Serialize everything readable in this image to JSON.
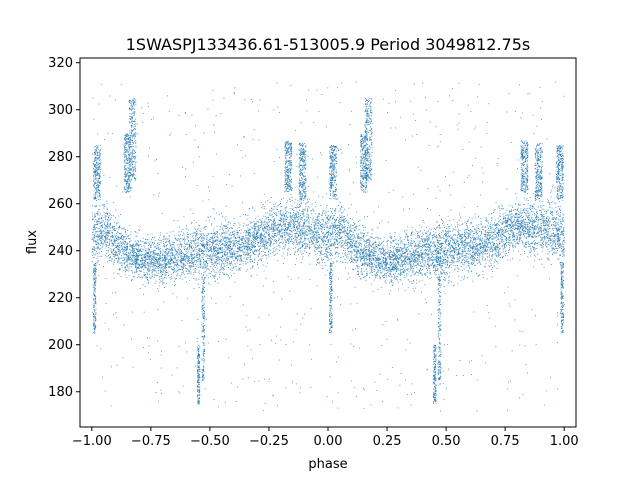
{
  "chart_data": {
    "type": "scatter",
    "title": "1SWASPJ133436.61-513005.9 Period 3049812.75s",
    "xlabel": "phase",
    "ylabel": "flux",
    "xlim": [
      -1.05,
      1.05
    ],
    "ylim": [
      165,
      322
    ],
    "xticks": [
      -1.0,
      -0.75,
      -0.5,
      -0.25,
      0.0,
      0.25,
      0.5,
      0.75,
      1.0
    ],
    "xtick_labels": [
      "−1.00",
      "−0.75",
      "−0.50",
      "−0.25",
      "0.00",
      "0.25",
      "0.50",
      "0.75",
      "1.00"
    ],
    "yticks": [
      180,
      200,
      220,
      240,
      260,
      280,
      300,
      320
    ],
    "ytick_labels": [
      "180",
      "200",
      "220",
      "240",
      "260",
      "280",
      "300",
      "320"
    ],
    "grid": false,
    "point_color": "#1f77b4",
    "series": [
      {
        "phase": [
          -1.0,
          -0.95,
          -0.9,
          -0.85,
          -0.8,
          -0.75,
          -0.7,
          -0.65,
          -0.6,
          -0.55,
          -0.5,
          -0.45,
          -0.4,
          -0.35,
          -0.3,
          -0.25,
          -0.2,
          -0.15,
          -0.1,
          -0.05,
          0.0,
          0.05,
          0.1,
          0.15,
          0.2,
          0.25,
          0.3,
          0.35,
          0.4,
          0.45,
          0.5,
          0.55,
          0.6,
          0.65,
          0.7,
          0.75,
          0.8,
          0.85,
          0.9,
          0.95,
          1.0
        ],
        "flux_median": [
          246,
          249,
          243,
          239,
          237,
          236,
          236,
          238,
          239,
          240,
          240,
          241,
          242,
          243,
          245,
          248,
          250,
          251,
          250,
          248,
          246,
          249,
          243,
          239,
          237,
          236,
          236,
          238,
          239,
          240,
          240,
          241,
          242,
          243,
          245,
          248,
          250,
          251,
          250,
          248,
          246
        ],
        "flux_spread": [
          12,
          10,
          10,
          9,
          9,
          9,
          9,
          10,
          10,
          11,
          11,
          10,
          10,
          10,
          10,
          10,
          10,
          10,
          11,
          12,
          12,
          10,
          10,
          9,
          9,
          9,
          9,
          10,
          10,
          11,
          11,
          10,
          10,
          10,
          10,
          10,
          10,
          10,
          11,
          12,
          12
        ],
        "flux_min": 172,
        "flux_max": 312
      }
    ],
    "high_clumps": [
      {
        "phase": -0.98,
        "flux": [
          262,
          285
        ]
      },
      {
        "phase": -0.85,
        "flux": [
          265,
          290
        ]
      },
      {
        "phase": -0.83,
        "flux": [
          270,
          305
        ]
      },
      {
        "phase": -0.17,
        "flux": [
          265,
          287
        ]
      },
      {
        "phase": -0.11,
        "flux": [
          262,
          286
        ]
      },
      {
        "phase": 0.02,
        "flux": [
          262,
          285
        ]
      },
      {
        "phase": 0.15,
        "flux": [
          265,
          290
        ]
      },
      {
        "phase": 0.17,
        "flux": [
          270,
          305
        ]
      },
      {
        "phase": 0.83,
        "flux": [
          265,
          287
        ]
      },
      {
        "phase": 0.89,
        "flux": [
          262,
          286
        ]
      },
      {
        "phase": 0.98,
        "flux": [
          262,
          285
        ]
      }
    ],
    "low_streaks": [
      {
        "phase": -0.99,
        "flux": [
          205,
          235
        ]
      },
      {
        "phase": -0.55,
        "flux": [
          175,
          200
        ]
      },
      {
        "phase": -0.53,
        "flux": [
          185,
          230
        ]
      },
      {
        "phase": 0.01,
        "flux": [
          205,
          235
        ]
      },
      {
        "phase": 0.45,
        "flux": [
          175,
          200
        ]
      },
      {
        "phase": 0.47,
        "flux": [
          185,
          230
        ]
      },
      {
        "phase": 0.99,
        "flux": [
          205,
          235
        ]
      }
    ]
  }
}
